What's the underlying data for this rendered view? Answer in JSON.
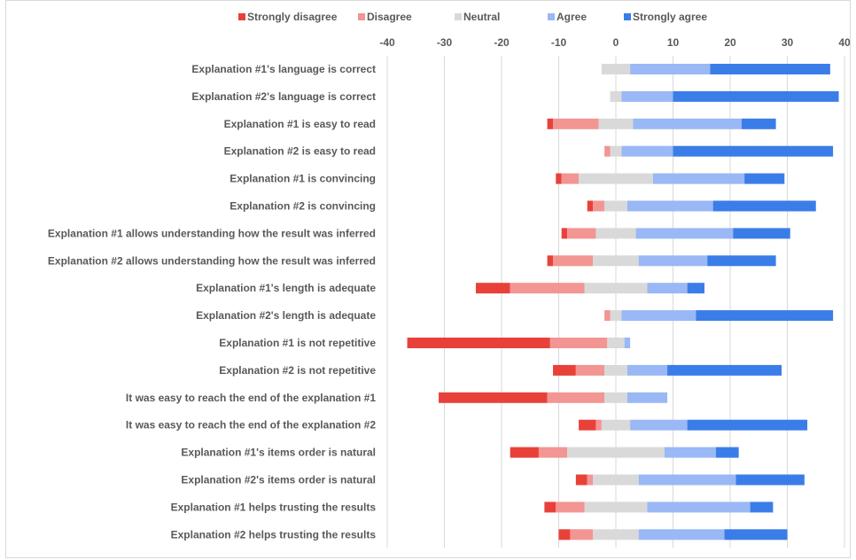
{
  "chart_data": {
    "type": "bar",
    "orientation": "horizontal",
    "stacked": "diverging",
    "title": "",
    "xlabel": "",
    "ylabel": "",
    "xlim": [
      -40,
      40
    ],
    "x_ticks": [
      -40,
      -30,
      -20,
      -10,
      0,
      10,
      20,
      30,
      40
    ],
    "x_tick_labels": [
      "-40",
      "-30",
      "-20",
      "-10",
      "0",
      "10",
      "20",
      "30",
      "40"
    ],
    "grid": "vertical",
    "legend_position": "top",
    "colors": {
      "strongly_disagree": "#e8413a",
      "disagree": "#f29593",
      "neutral": "#d9d9d9",
      "agree": "#99b8f5",
      "strongly_agree": "#3b7de8"
    },
    "categories": [
      "Explanation #1's language is correct",
      "Explanation #2's language is correct",
      "Explanation #1 is easy to read",
      "Explanation #2 is easy to read",
      "Explanation #1 is convincing",
      "Explanation #2 is convincing",
      "Explanation #1 allows understanding how the result was inferred",
      "Explanation #2 allows understanding how the result was inferred",
      "Explanation #1's length is adequate",
      "Explanation #2's length is adequate",
      "Explanation #1 is not repetitive",
      "Explanation #2 is not repetitive",
      "It was easy to reach the end of the explanation #1",
      "It was easy to reach the end of the explanation #2",
      "Explanation #1's items order is natural",
      "Explanation #2's items order is natural",
      "Explanation #1 helps trusting the results",
      "Explanation #2 helps trusting the results"
    ],
    "series": [
      {
        "name": "Strongly disagree",
        "key": "strongly_disagree",
        "values": [
          0,
          0,
          1,
          0,
          1,
          1,
          1,
          1,
          6,
          0,
          25,
          4,
          19,
          3,
          5,
          2,
          2,
          2
        ]
      },
      {
        "name": "Disagree",
        "key": "disagree",
        "values": [
          0,
          0,
          8,
          1,
          3,
          2,
          5,
          7,
          13,
          1,
          10,
          5,
          10,
          1,
          5,
          1,
          5,
          4
        ]
      },
      {
        "name": "Neutral",
        "key": "neutral",
        "values": [
          5,
          2,
          6,
          2,
          13,
          4,
          7,
          8,
          11,
          2,
          3,
          4,
          4,
          5,
          17,
          8,
          11,
          8
        ]
      },
      {
        "name": "Agree",
        "key": "agree",
        "values": [
          14,
          9,
          19,
          9,
          16,
          15,
          17,
          12,
          7,
          13,
          1,
          7,
          7,
          10,
          9,
          17,
          18,
          15
        ]
      },
      {
        "name": "Strongly agree",
        "key": "strongly_agree",
        "values": [
          21,
          29,
          6,
          28,
          7,
          18,
          10,
          12,
          3,
          24,
          0,
          20,
          0,
          21,
          4,
          12,
          4,
          11
        ]
      }
    ]
  }
}
